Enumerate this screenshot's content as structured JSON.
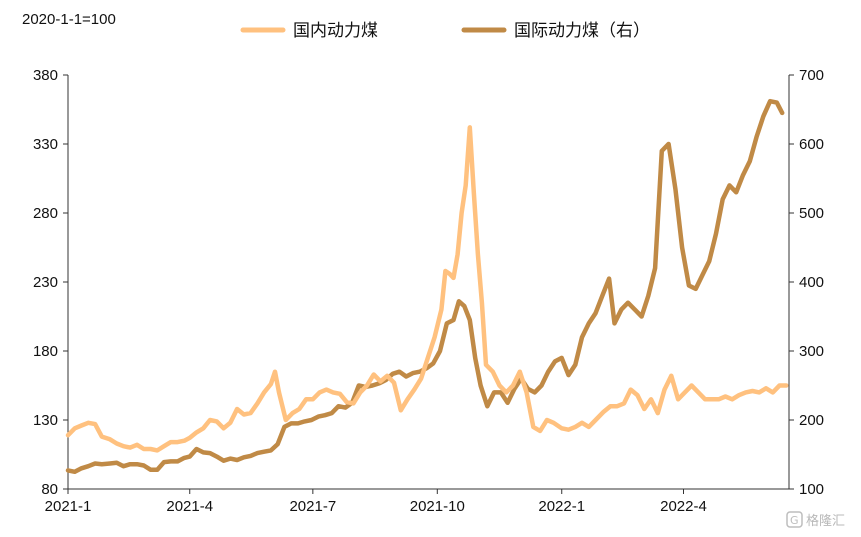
{
  "chart_data": {
    "type": "line",
    "note": "2020-1-1=100",
    "x_ticks": [
      "2021-1",
      "2021-4",
      "2021-7",
      "2021-10",
      "2022-1",
      "2022-4"
    ],
    "x_range": [
      "2021-01-01",
      "2022-06-18"
    ],
    "y_left": {
      "range": [
        80,
        380
      ],
      "ticks": [
        80,
        130,
        180,
        230,
        280,
        330,
        380
      ]
    },
    "y_right": {
      "range": [
        100,
        700
      ],
      "ticks": [
        100,
        200,
        300,
        400,
        500,
        600,
        700
      ]
    },
    "legend_position": "top",
    "series": [
      {
        "name": "国内动力煤",
        "axis": "left",
        "color": "#FFC17F",
        "points": [
          [
            "2021-01-01",
            119
          ],
          [
            "2021-01-06",
            124
          ],
          [
            "2021-01-11",
            126
          ],
          [
            "2021-01-16",
            128
          ],
          [
            "2021-01-21",
            127
          ],
          [
            "2021-01-26",
            118
          ],
          [
            "2021-02-01",
            116
          ],
          [
            "2021-02-06",
            113
          ],
          [
            "2021-02-11",
            111
          ],
          [
            "2021-02-16",
            110
          ],
          [
            "2021-02-21",
            112
          ],
          [
            "2021-02-26",
            109
          ],
          [
            "2021-03-03",
            109
          ],
          [
            "2021-03-08",
            108
          ],
          [
            "2021-03-13",
            111
          ],
          [
            "2021-03-18",
            114
          ],
          [
            "2021-03-23",
            114
          ],
          [
            "2021-03-28",
            115
          ],
          [
            "2021-04-01",
            117
          ],
          [
            "2021-04-06",
            121
          ],
          [
            "2021-04-11",
            124
          ],
          [
            "2021-04-16",
            130
          ],
          [
            "2021-04-21",
            129
          ],
          [
            "2021-04-26",
            124
          ],
          [
            "2021-05-01",
            128
          ],
          [
            "2021-05-06",
            138
          ],
          [
            "2021-05-11",
            134
          ],
          [
            "2021-05-16",
            135
          ],
          [
            "2021-05-21",
            142
          ],
          [
            "2021-05-26",
            150
          ],
          [
            "2021-05-31",
            156
          ],
          [
            "2021-06-03",
            165
          ],
          [
            "2021-06-06",
            150
          ],
          [
            "2021-06-11",
            130
          ],
          [
            "2021-06-16",
            135
          ],
          [
            "2021-06-21",
            138
          ],
          [
            "2021-06-26",
            145
          ],
          [
            "2021-07-01",
            145
          ],
          [
            "2021-07-06",
            150
          ],
          [
            "2021-07-11",
            152
          ],
          [
            "2021-07-16",
            150
          ],
          [
            "2021-07-21",
            149
          ],
          [
            "2021-07-26",
            143
          ],
          [
            "2021-07-31",
            142
          ],
          [
            "2021-08-05",
            150
          ],
          [
            "2021-08-10",
            155
          ],
          [
            "2021-08-15",
            163
          ],
          [
            "2021-08-20",
            158
          ],
          [
            "2021-08-25",
            162
          ],
          [
            "2021-08-30",
            157
          ],
          [
            "2021-09-04",
            137
          ],
          [
            "2021-09-09",
            145
          ],
          [
            "2021-09-14",
            152
          ],
          [
            "2021-09-19",
            160
          ],
          [
            "2021-09-24",
            175
          ],
          [
            "2021-09-29",
            190
          ],
          [
            "2021-10-04",
            210
          ],
          [
            "2021-10-07",
            238
          ],
          [
            "2021-10-10",
            236
          ],
          [
            "2021-10-13",
            233
          ],
          [
            "2021-10-16",
            250
          ],
          [
            "2021-10-19",
            280
          ],
          [
            "2021-10-22",
            300
          ],
          [
            "2021-10-25",
            342
          ],
          [
            "2021-10-28",
            295
          ],
          [
            "2021-10-31",
            250
          ],
          [
            "2021-11-03",
            215
          ],
          [
            "2021-11-06",
            170
          ],
          [
            "2021-11-11",
            165
          ],
          [
            "2021-11-16",
            155
          ],
          [
            "2021-11-21",
            150
          ],
          [
            "2021-11-26",
            155
          ],
          [
            "2021-12-01",
            165
          ],
          [
            "2021-12-06",
            150
          ],
          [
            "2021-12-11",
            125
          ],
          [
            "2021-12-16",
            122
          ],
          [
            "2021-12-21",
            130
          ],
          [
            "2021-12-26",
            128
          ],
          [
            "2022-01-01",
            124
          ],
          [
            "2022-01-06",
            123
          ],
          [
            "2022-01-11",
            125
          ],
          [
            "2022-01-16",
            128
          ],
          [
            "2022-01-21",
            125
          ],
          [
            "2022-01-26",
            130
          ],
          [
            "2022-02-01",
            136
          ],
          [
            "2022-02-06",
            140
          ],
          [
            "2022-02-11",
            140
          ],
          [
            "2022-02-16",
            142
          ],
          [
            "2022-02-21",
            152
          ],
          [
            "2022-02-26",
            148
          ],
          [
            "2022-03-03",
            138
          ],
          [
            "2022-03-08",
            145
          ],
          [
            "2022-03-13",
            135
          ],
          [
            "2022-03-18",
            152
          ],
          [
            "2022-03-23",
            162
          ],
          [
            "2022-03-28",
            145
          ],
          [
            "2022-04-02",
            150
          ],
          [
            "2022-04-07",
            155
          ],
          [
            "2022-04-12",
            150
          ],
          [
            "2022-04-17",
            145
          ],
          [
            "2022-04-22",
            145
          ],
          [
            "2022-04-27",
            145
          ],
          [
            "2022-05-02",
            147
          ],
          [
            "2022-05-07",
            145
          ],
          [
            "2022-05-12",
            148
          ],
          [
            "2022-05-17",
            150
          ],
          [
            "2022-05-22",
            151
          ],
          [
            "2022-05-27",
            150
          ],
          [
            "2022-06-01",
            153
          ],
          [
            "2022-06-06",
            150
          ],
          [
            "2022-06-11",
            155
          ],
          [
            "2022-06-16",
            155
          ]
        ]
      },
      {
        "name": "国际动力煤（右）",
        "axis": "right",
        "color": "#C08A46",
        "points": [
          [
            "2021-01-01",
            127
          ],
          [
            "2021-01-06",
            125
          ],
          [
            "2021-01-11",
            130
          ],
          [
            "2021-01-16",
            133
          ],
          [
            "2021-01-21",
            137
          ],
          [
            "2021-01-26",
            136
          ],
          [
            "2021-02-01",
            137
          ],
          [
            "2021-02-06",
            138
          ],
          [
            "2021-02-11",
            133
          ],
          [
            "2021-02-16",
            136
          ],
          [
            "2021-02-21",
            136
          ],
          [
            "2021-02-26",
            134
          ],
          [
            "2021-03-03",
            128
          ],
          [
            "2021-03-08",
            128
          ],
          [
            "2021-03-13",
            139
          ],
          [
            "2021-03-18",
            140
          ],
          [
            "2021-03-23",
            140
          ],
          [
            "2021-03-28",
            145
          ],
          [
            "2021-04-01",
            147
          ],
          [
            "2021-04-06",
            158
          ],
          [
            "2021-04-11",
            153
          ],
          [
            "2021-04-16",
            152
          ],
          [
            "2021-04-21",
            147
          ],
          [
            "2021-04-26",
            141
          ],
          [
            "2021-05-01",
            144
          ],
          [
            "2021-05-06",
            142
          ],
          [
            "2021-05-11",
            146
          ],
          [
            "2021-05-16",
            148
          ],
          [
            "2021-05-21",
            152
          ],
          [
            "2021-05-26",
            154
          ],
          [
            "2021-05-31",
            156
          ],
          [
            "2021-06-05",
            165
          ],
          [
            "2021-06-10",
            190
          ],
          [
            "2021-06-15",
            195
          ],
          [
            "2021-06-20",
            195
          ],
          [
            "2021-06-25",
            198
          ],
          [
            "2021-06-30",
            200
          ],
          [
            "2021-07-05",
            205
          ],
          [
            "2021-07-10",
            207
          ],
          [
            "2021-07-15",
            210
          ],
          [
            "2021-07-20",
            220
          ],
          [
            "2021-07-25",
            218
          ],
          [
            "2021-07-30",
            225
          ],
          [
            "2021-08-04",
            250
          ],
          [
            "2021-08-09",
            248
          ],
          [
            "2021-08-14",
            250
          ],
          [
            "2021-08-19",
            253
          ],
          [
            "2021-08-24",
            258
          ],
          [
            "2021-08-29",
            267
          ],
          [
            "2021-09-03",
            270
          ],
          [
            "2021-09-08",
            263
          ],
          [
            "2021-09-13",
            268
          ],
          [
            "2021-09-18",
            270
          ],
          [
            "2021-09-23",
            275
          ],
          [
            "2021-09-28",
            282
          ],
          [
            "2021-10-03",
            300
          ],
          [
            "2021-10-08",
            340
          ],
          [
            "2021-10-13",
            345
          ],
          [
            "2021-10-17",
            372
          ],
          [
            "2021-10-21",
            365
          ],
          [
            "2021-10-25",
            345
          ],
          [
            "2021-10-29",
            290
          ],
          [
            "2021-11-02",
            250
          ],
          [
            "2021-11-07",
            220
          ],
          [
            "2021-11-12",
            240
          ],
          [
            "2021-11-17",
            240
          ],
          [
            "2021-11-22",
            225
          ],
          [
            "2021-11-27",
            245
          ],
          [
            "2021-12-02",
            260
          ],
          [
            "2021-12-07",
            245
          ],
          [
            "2021-12-12",
            240
          ],
          [
            "2021-12-17",
            250
          ],
          [
            "2021-12-22",
            270
          ],
          [
            "2021-12-27",
            285
          ],
          [
            "2022-01-01",
            290
          ],
          [
            "2022-01-06",
            265
          ],
          [
            "2022-01-11",
            280
          ],
          [
            "2022-01-16",
            320
          ],
          [
            "2022-01-21",
            340
          ],
          [
            "2022-01-26",
            355
          ],
          [
            "2022-01-31",
            380
          ],
          [
            "2022-02-05",
            405
          ],
          [
            "2022-02-09",
            340
          ],
          [
            "2022-02-14",
            360
          ],
          [
            "2022-02-19",
            370
          ],
          [
            "2022-02-24",
            360
          ],
          [
            "2022-03-01",
            350
          ],
          [
            "2022-03-06",
            380
          ],
          [
            "2022-03-11",
            420
          ],
          [
            "2022-03-16",
            590
          ],
          [
            "2022-03-21",
            600
          ],
          [
            "2022-03-26",
            535
          ],
          [
            "2022-03-31",
            450
          ],
          [
            "2022-04-05",
            395
          ],
          [
            "2022-04-10",
            390
          ],
          [
            "2022-04-15",
            410
          ],
          [
            "2022-04-20",
            430
          ],
          [
            "2022-04-25",
            470
          ],
          [
            "2022-04-30",
            520
          ],
          [
            "2022-05-05",
            540
          ],
          [
            "2022-05-10",
            530
          ],
          [
            "2022-05-15",
            555
          ],
          [
            "2022-05-20",
            575
          ],
          [
            "2022-05-25",
            610
          ],
          [
            "2022-05-30",
            640
          ],
          [
            "2022-06-04",
            662
          ],
          [
            "2022-06-09",
            660
          ],
          [
            "2022-06-13",
            645
          ]
        ]
      }
    ]
  },
  "watermark": {
    "icon": "gelonghui-logo-icon",
    "text": "格隆汇"
  }
}
